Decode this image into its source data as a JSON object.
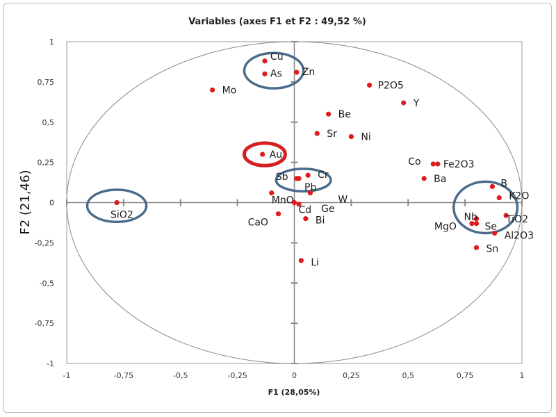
{
  "chart_data": {
    "type": "scatter",
    "title": "Variables (axes F1 et F2 : 49,52 %)",
    "xlabel": "F1 (28,05%)",
    "ylabel": "F2 (21,46)",
    "xlim": [
      -1,
      1
    ],
    "ylim": [
      -1,
      1
    ],
    "x_ticks": [
      "-1",
      "-0,75",
      "-0,5",
      "-0,25",
      "0",
      "0,25",
      "0,5",
      "0,75",
      "1"
    ],
    "y_ticks": [
      "1",
      "0,75",
      "0,5",
      "0,25",
      "0",
      "-0,25",
      "-0,5",
      "-0,75",
      "-1"
    ],
    "grid": false,
    "correlation_circle": {
      "center": [
        0,
        0
      ],
      "radius": 1,
      "color": "#888888"
    },
    "point_color": "#e01b1b",
    "axis_color": "#888888",
    "points": [
      {
        "label": "Cu",
        "x": -0.13,
        "y": 0.88
      },
      {
        "label": "As",
        "x": -0.13,
        "y": 0.8
      },
      {
        "label": "Zn",
        "x": 0.01,
        "y": 0.81
      },
      {
        "label": "Mo",
        "x": -0.36,
        "y": 0.7
      },
      {
        "label": "P2O5",
        "x": 0.33,
        "y": 0.73
      },
      {
        "label": "Y",
        "x": 0.48,
        "y": 0.62
      },
      {
        "label": "Be",
        "x": 0.15,
        "y": 0.55
      },
      {
        "label": "Sr",
        "x": 0.1,
        "y": 0.43
      },
      {
        "label": "Ni",
        "x": 0.25,
        "y": 0.41
      },
      {
        "label": "Au",
        "x": -0.14,
        "y": 0.3
      },
      {
        "label": "Co",
        "x": 0.61,
        "y": 0.24
      },
      {
        "label": "Fe2O3",
        "x": 0.63,
        "y": 0.24
      },
      {
        "label": "Sb",
        "x": 0.01,
        "y": 0.15
      },
      {
        "label": "Cr",
        "x": 0.06,
        "y": 0.17
      },
      {
        "label": "Pb",
        "x": 0.02,
        "y": 0.15
      },
      {
        "label": "Ba",
        "x": 0.57,
        "y": 0.15
      },
      {
        "label": "MnO",
        "x": -0.1,
        "y": 0.06
      },
      {
        "label": "W",
        "x": 0.07,
        "y": 0.06
      },
      {
        "label": "B",
        "x": 0.87,
        "y": 0.1
      },
      {
        "label": "K2O",
        "x": 0.9,
        "y": 0.03
      },
      {
        "label": "SiO2",
        "x": -0.78,
        "y": 0.0
      },
      {
        "label": "Cd",
        "x": 0.0,
        "y": 0.0
      },
      {
        "label": "Ge",
        "x": 0.02,
        "y": -0.01
      },
      {
        "label": "CaO",
        "x": -0.07,
        "y": -0.07
      },
      {
        "label": "Bi",
        "x": 0.05,
        "y": -0.1
      },
      {
        "label": "Nb",
        "x": 0.8,
        "y": -0.1
      },
      {
        "label": "TiO2",
        "x": 0.93,
        "y": -0.08
      },
      {
        "label": "MgO",
        "x": 0.78,
        "y": -0.13
      },
      {
        "label": "Se",
        "x": 0.8,
        "y": -0.13
      },
      {
        "label": "Al2O3",
        "x": 0.88,
        "y": -0.19
      },
      {
        "label": "Sn",
        "x": 0.8,
        "y": -0.28
      },
      {
        "label": "Li",
        "x": 0.03,
        "y": -0.36
      }
    ],
    "annotations": [
      {
        "type": "ellipse",
        "color": "#4a6b8a",
        "cx": -0.09,
        "cy": 0.82,
        "rx": 0.13,
        "ry": 0.11
      },
      {
        "type": "ellipse",
        "color": "#4a6b8a",
        "cx": -0.78,
        "cy": -0.02,
        "rx": 0.13,
        "ry": 0.1
      },
      {
        "type": "ellipse",
        "color": "#4a6b8a",
        "cx": 0.04,
        "cy": 0.14,
        "rx": 0.12,
        "ry": 0.07
      },
      {
        "type": "ellipse",
        "color": "#4a6b8a",
        "cx": 0.84,
        "cy": -0.03,
        "rx": 0.14,
        "ry": 0.16
      },
      {
        "type": "ellipse",
        "color": "#d42020",
        "cx": -0.13,
        "cy": 0.3,
        "rx": 0.09,
        "ry": 0.07
      }
    ]
  }
}
